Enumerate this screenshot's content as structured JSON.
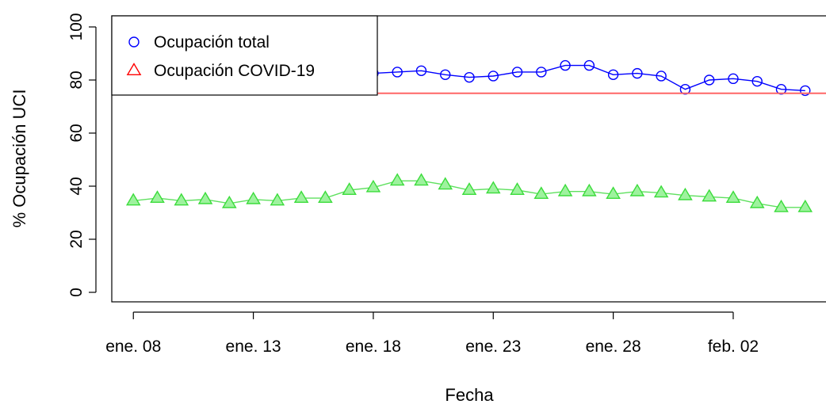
{
  "chart_data": {
    "type": "line",
    "title": "",
    "xlabel": "Fecha",
    "ylabel": "% Ocupación UCI",
    "ylim": [
      0,
      100
    ],
    "yticks": [
      0,
      20,
      40,
      60,
      80,
      100
    ],
    "x_tick_labels": [
      "ene. 08",
      "ene. 13",
      "ene. 18",
      "ene. 23",
      "ene. 28",
      "feb. 02"
    ],
    "x_tick_days": [
      8,
      13,
      18,
      23,
      28,
      33
    ],
    "x": [
      "ene. 08",
      "ene. 09",
      "ene. 10",
      "ene. 11",
      "ene. 12",
      "ene. 13",
      "ene. 14",
      "ene. 15",
      "ene. 16",
      "ene. 17",
      "ene. 18",
      "ene. 19",
      "ene. 20",
      "ene. 21",
      "ene. 22",
      "ene. 23",
      "ene. 24",
      "ene. 25",
      "ene. 26",
      "ene. 27",
      "ene. 28",
      "ene. 29",
      "ene. 30",
      "ene. 31",
      "feb. 01",
      "feb. 02",
      "feb. 03",
      "feb. 04",
      "feb. 05"
    ],
    "x_days": [
      8,
      9,
      10,
      11,
      12,
      13,
      14,
      15,
      16,
      17,
      18,
      19,
      20,
      21,
      22,
      23,
      24,
      25,
      26,
      27,
      28,
      29,
      30,
      31,
      32,
      33,
      34,
      35,
      36
    ],
    "xlim_days": [
      7.1,
      36.9
    ],
    "series": [
      {
        "name": "Ocupación total",
        "color": "#0000ff",
        "marker": "circle",
        "values": [
          null,
          null,
          null,
          null,
          null,
          null,
          null,
          null,
          null,
          null,
          82.5,
          83,
          83.5,
          82,
          81,
          81.5,
          83,
          83,
          85.5,
          85.5,
          82,
          82.5,
          81.5,
          76.5,
          80,
          80.5,
          79.5,
          76.5,
          76
        ]
      },
      {
        "name": "",
        "color": "#3bdc3b",
        "marker": "triangle",
        "values": [
          34.5,
          35.5,
          34.5,
          35,
          33.5,
          35,
          34.5,
          35.5,
          35.5,
          38.5,
          39.5,
          42,
          42,
          40.5,
          38.5,
          39,
          38.5,
          37,
          38,
          38,
          37,
          38,
          37.5,
          36.5,
          36,
          35.5,
          33.5,
          32,
          32
        ]
      }
    ],
    "reference_line": {
      "y": 75,
      "color": "#ff6666"
    },
    "legend": {
      "placement": "top-left",
      "entries": [
        {
          "label": "Ocupación total",
          "color": "#0000ff",
          "marker": "circle"
        },
        {
          "label": "Ocupación COVID-19",
          "color": "#ff0000",
          "marker": "triangle"
        }
      ]
    },
    "grid": false
  }
}
